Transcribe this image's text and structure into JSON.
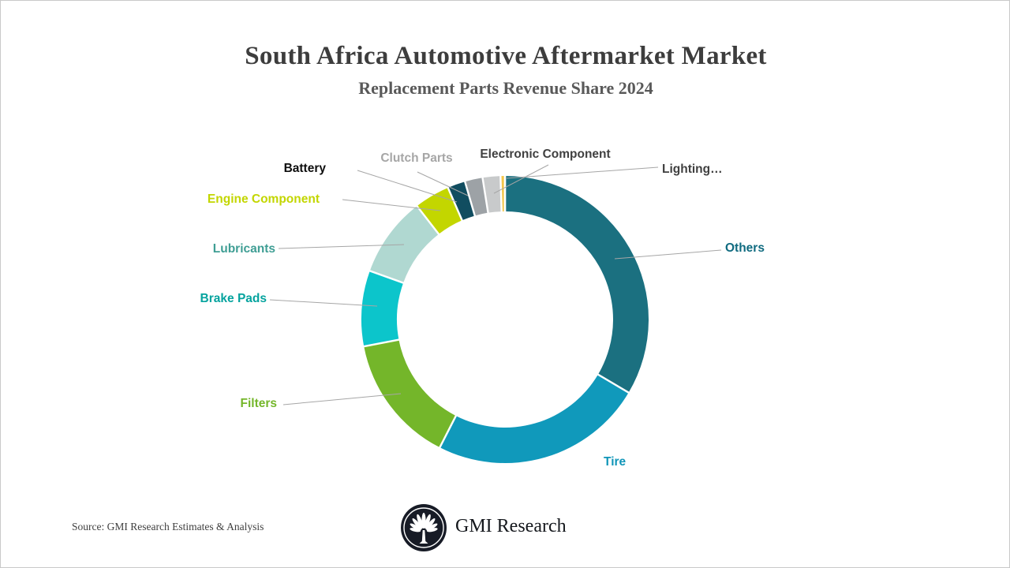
{
  "title": "South Africa Automotive Aftermarket Market",
  "subtitle": "Replacement Parts Revenue Share 2024",
  "source_note": "Source: GMI Research Estimates & Analysis",
  "brand": {
    "name": "GMI Research"
  },
  "colors": {
    "background": "#ffffff",
    "border": "#c9c9c9",
    "title": "#3d3d3d",
    "subtitle": "#595959",
    "source": "#404040",
    "brand_text": "#14171c",
    "logo_bg": "#171b26",
    "leader_line": "#a6a6a6",
    "separator": "#ffffff"
  },
  "chart_data": {
    "type": "pie",
    "subtype": "donut",
    "title": "South Africa Automotive Aftermarket Market",
    "subtitle": "Replacement Parts Revenue Share 2024",
    "start_angle_deg": 0,
    "direction": "clockwise",
    "value_note": "percent shares estimated from arc angles; no numeric labels shown in figure",
    "slices": [
      {
        "id": "others",
        "label": "Others",
        "value": 33.5,
        "color": "#1b7080",
        "label_color": "#106b80"
      },
      {
        "id": "tire",
        "label": "Tire",
        "value": 24,
        "color": "#1099bb",
        "label_color": "#1095b8"
      },
      {
        "id": "filters",
        "label": "Filters",
        "value": 14.5,
        "color": "#74b62a",
        "label_color": "#74b62a"
      },
      {
        "id": "brake-pads",
        "label": "Brake Pads",
        "value": 8.5,
        "color": "#0cc5cb",
        "label_color": "#05a39e"
      },
      {
        "id": "lubricants",
        "label": "Lubricants",
        "value": 9,
        "color": "#b0d8d1",
        "label_color": "#3f9e94"
      },
      {
        "id": "engine-component",
        "label": "Engine Component",
        "value": 4,
        "color": "#c3d600",
        "label_color": "#c3d600"
      },
      {
        "id": "battery",
        "label": "Battery",
        "value": 2,
        "color": "#114d60",
        "label_color": "#0d0d0d"
      },
      {
        "id": "clutch-parts",
        "label": "Clutch Parts",
        "value": 2,
        "color": "#9da2a6",
        "label_color": "#a6a6a6"
      },
      {
        "id": "electronic-component",
        "label": "Electronic Component",
        "value": 2,
        "color": "#c8cacb",
        "label_color": "#404040"
      },
      {
        "id": "lighting",
        "label": "Lighting…",
        "value": 0.5,
        "color": "#f3c54a",
        "label_color": "#404040"
      }
    ]
  }
}
